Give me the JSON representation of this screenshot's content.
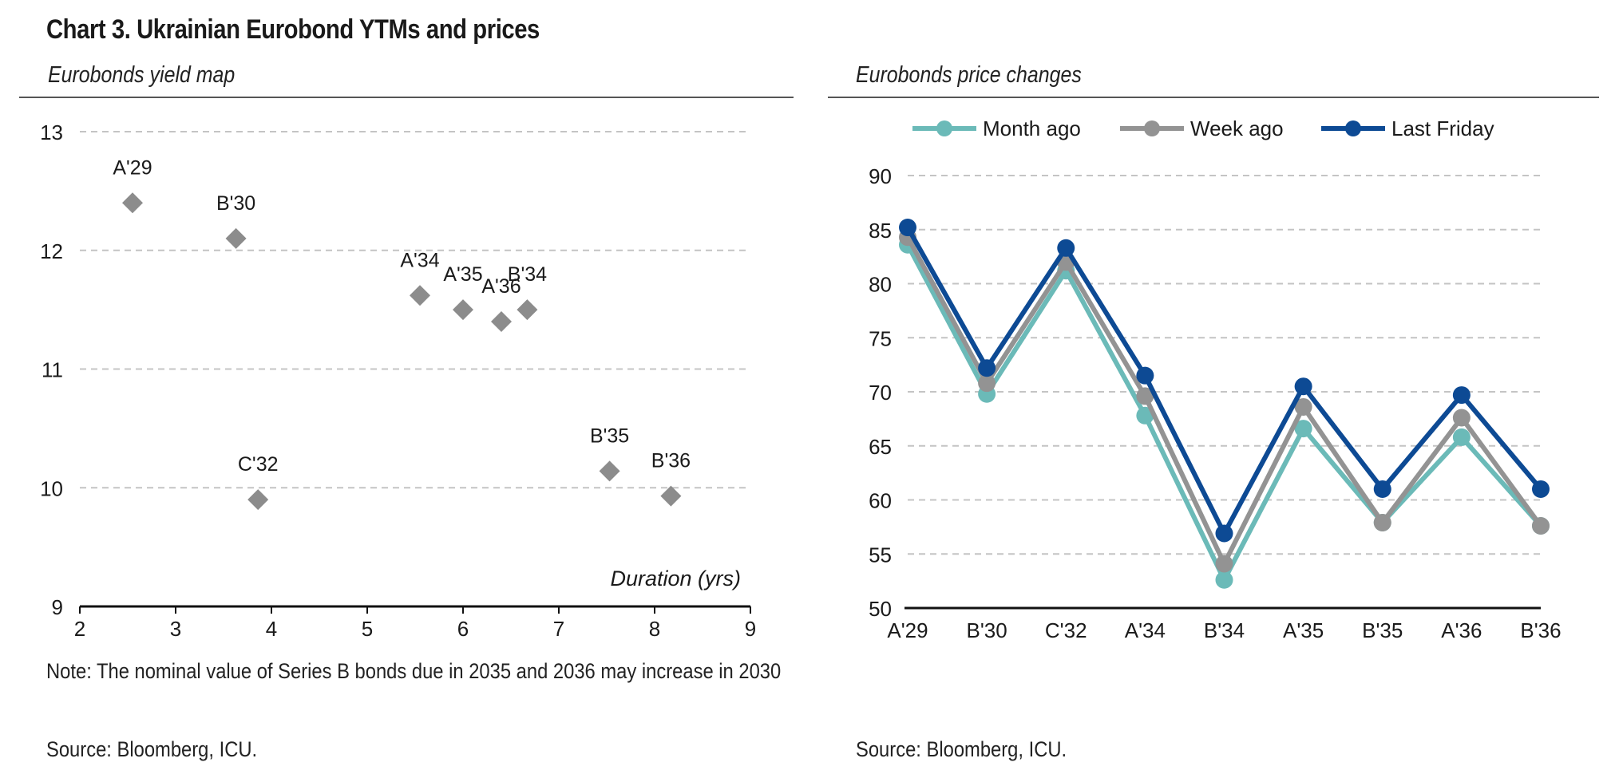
{
  "title": "Chart 3. Ukrainian Eurobond YTMs and prices",
  "left_panel": {
    "subtitle": "Eurobonds yield map",
    "note": "Note: The nominal value of Series B bonds due in 2035 and 2036 may increase in 2030",
    "source": "Source: Bloomberg, ICU."
  },
  "right_panel": {
    "subtitle": "Eurobonds price changes",
    "source": "Source: Bloomberg, ICU."
  },
  "chart_data": [
    {
      "type": "scatter",
      "title": "Eurobonds yield map",
      "xlabel": "Duration (yrs)",
      "ylabel": "",
      "xlim": [
        2,
        9
      ],
      "ylim": [
        9,
        13
      ],
      "xticks": [
        "2",
        "3",
        "4",
        "5",
        "6",
        "7",
        "8",
        "9"
      ],
      "yticks": [
        "9",
        "10",
        "11",
        "12",
        "13"
      ],
      "grid": true,
      "marker_color": "#8c8c8c",
      "points": [
        {
          "label": "A'29",
          "x": 2.55,
          "y": 12.4
        },
        {
          "label": "B'30",
          "x": 3.63,
          "y": 12.1
        },
        {
          "label": "C'32",
          "x": 3.86,
          "y": 9.9
        },
        {
          "label": "A'34",
          "x": 5.55,
          "y": 11.62
        },
        {
          "label": "A'35",
          "x": 6.0,
          "y": 11.5
        },
        {
          "label": "A'36",
          "x": 6.4,
          "y": 11.4
        },
        {
          "label": "B'34",
          "x": 6.67,
          "y": 11.5
        },
        {
          "label": "B'35",
          "x": 7.53,
          "y": 10.14
        },
        {
          "label": "B'36",
          "x": 8.17,
          "y": 9.93
        }
      ]
    },
    {
      "type": "line",
      "title": "Eurobonds price changes",
      "categories": [
        "A'29",
        "B'30",
        "C'32",
        "A'34",
        "B'34",
        "A'35",
        "B'35",
        "A'36",
        "B'36"
      ],
      "ylim": [
        50,
        90
      ],
      "yticks": [
        "50",
        "55",
        "60",
        "65",
        "70",
        "75",
        "80",
        "85",
        "90"
      ],
      "grid": true,
      "legend_position": "top",
      "series": [
        {
          "name": "Month ago",
          "color": "#6bbab8",
          "values": [
            83.6,
            69.8,
            81.2,
            67.8,
            52.6,
            66.6,
            57.9,
            65.8,
            57.6
          ]
        },
        {
          "name": "Week ago",
          "color": "#939393",
          "values": [
            84.3,
            70.8,
            82.0,
            69.6,
            54.1,
            68.6,
            57.9,
            67.6,
            57.6
          ]
        },
        {
          "name": "Last Friday",
          "color": "#0d4a94",
          "values": [
            85.2,
            72.2,
            83.3,
            71.5,
            56.9,
            70.5,
            61.0,
            69.7,
            61.0
          ]
        }
      ]
    }
  ]
}
